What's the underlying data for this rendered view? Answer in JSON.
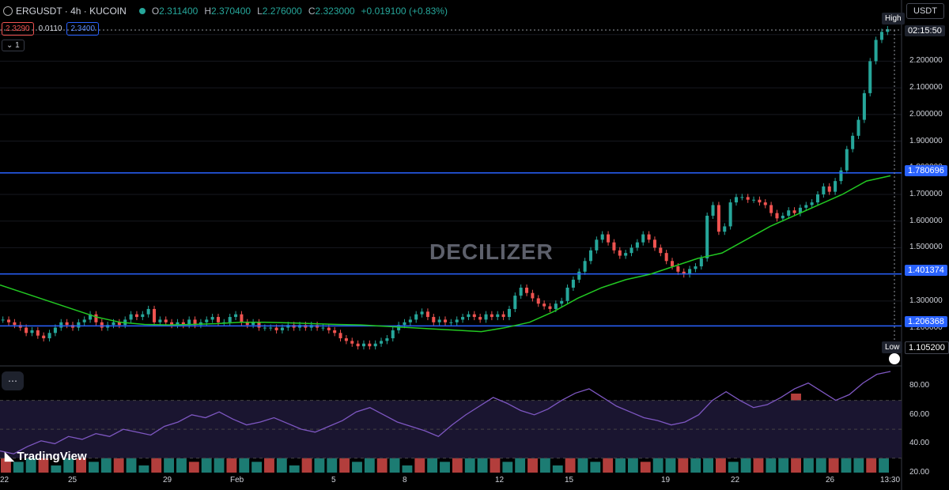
{
  "header": {
    "symbol": "ERGUSDT · 4h · KUCOIN",
    "open_key": "O",
    "open": "2.311400",
    "high_key": "H",
    "high": "2.370400",
    "low_key": "L",
    "low": "2.276000",
    "close_key": "C",
    "close": "2.323000",
    "change": "+0.019100 (+0.83%)"
  },
  "trade": {
    "sell": "2.3290",
    "spread": "0.0110",
    "buy": "2.3400",
    "qty": "1"
  },
  "currency": "USDT",
  "watermark": "DECILIZER",
  "branding": "TradingView",
  "indicator_button": "⋯",
  "colors": {
    "up": "#26a69a",
    "down": "#ef5350",
    "ma": "#22c822",
    "rsi": "#7e57c2",
    "hline": "#2962ff"
  },
  "price_axis": {
    "ticks": [
      "2.300000",
      "2.200000",
      "2.100000",
      "2.000000",
      "1.900000",
      "1.800000",
      "1.700000",
      "1.600000",
      "1.500000",
      "1.400000",
      "1.300000",
      "1.200000"
    ],
    "labels": [
      "1.780696",
      "1.401374",
      "1.206368"
    ],
    "low_value": "1.105200",
    "countdown": "02:15:50",
    "high_tag": "High",
    "low_tag": "Low"
  },
  "rsi_axis": {
    "ticks": [
      "80.00",
      "60.00",
      "40.00",
      "20.00"
    ]
  },
  "time_axis": {
    "ticks": [
      "22",
      "25",
      "29",
      "Feb",
      "5",
      "8",
      "12",
      "15",
      "19",
      "22",
      "26",
      "13:30"
    ]
  },
  "chart_data": {
    "type": "candlestick",
    "ylim": [
      1.08,
      2.4
    ],
    "horizontal_lines": [
      1.780696,
      1.401374,
      1.206368
    ],
    "closes": [
      1.23,
      1.22,
      1.21,
      1.2,
      1.18,
      1.19,
      1.17,
      1.16,
      1.18,
      1.2,
      1.22,
      1.21,
      1.2,
      1.22,
      1.23,
      1.25,
      1.22,
      1.2,
      1.21,
      1.22,
      1.21,
      1.23,
      1.25,
      1.24,
      1.25,
      1.27,
      1.22,
      1.23,
      1.22,
      1.21,
      1.22,
      1.21,
      1.23,
      1.21,
      1.22,
      1.23,
      1.24,
      1.22,
      1.22,
      1.24,
      1.25,
      1.22,
      1.21,
      1.22,
      1.2,
      1.2,
      1.2,
      1.19,
      1.2,
      1.21,
      1.2,
      1.21,
      1.2,
      1.21,
      1.2,
      1.2,
      1.19,
      1.18,
      1.16,
      1.15,
      1.14,
      1.13,
      1.14,
      1.13,
      1.14,
      1.15,
      1.16,
      1.19,
      1.21,
      1.22,
      1.23,
      1.25,
      1.26,
      1.24,
      1.22,
      1.23,
      1.22,
      1.22,
      1.23,
      1.24,
      1.25,
      1.24,
      1.23,
      1.25,
      1.24,
      1.25,
      1.24,
      1.27,
      1.32,
      1.35,
      1.33,
      1.31,
      1.29,
      1.28,
      1.27,
      1.29,
      1.3,
      1.35,
      1.38,
      1.41,
      1.45,
      1.49,
      1.53,
      1.55,
      1.52,
      1.49,
      1.47,
      1.48,
      1.5,
      1.52,
      1.55,
      1.53,
      1.5,
      1.48,
      1.45,
      1.43,
      1.41,
      1.4,
      1.42,
      1.43,
      1.46,
      1.62,
      1.66,
      1.56,
      1.58,
      1.67,
      1.69,
      1.69,
      1.68,
      1.68,
      1.67,
      1.66,
      1.63,
      1.61,
      1.62,
      1.64,
      1.63,
      1.65,
      1.66,
      1.67,
      1.7,
      1.73,
      1.71,
      1.75,
      1.79,
      1.87,
      1.92,
      1.98,
      2.08,
      2.2,
      2.28,
      2.31,
      2.32
    ],
    "ma": [
      1.36,
      1.33,
      1.3,
      1.27,
      1.24,
      1.22,
      1.212,
      1.21,
      1.212,
      1.215,
      1.22,
      1.22,
      1.218,
      1.215,
      1.212,
      1.21,
      1.205,
      1.2,
      1.195,
      1.19,
      1.185,
      1.2,
      1.22,
      1.26,
      1.31,
      1.35,
      1.38,
      1.4,
      1.43,
      1.46,
      1.48,
      1.53,
      1.58,
      1.62,
      1.66,
      1.7,
      1.75,
      1.77
    ],
    "rsi": [
      35,
      33,
      38,
      42,
      40,
      45,
      43,
      47,
      45,
      50,
      48,
      46,
      52,
      55,
      60,
      58,
      62,
      57,
      53,
      55,
      58,
      54,
      50,
      48,
      52,
      56,
      62,
      65,
      60,
      55,
      52,
      49,
      45,
      53,
      60,
      66,
      72,
      68,
      63,
      60,
      64,
      70,
      75,
      78,
      72,
      66,
      62,
      58,
      56,
      53,
      55,
      60,
      70,
      76,
      70,
      65,
      67,
      72,
      78,
      82,
      76,
      70,
      74,
      82,
      88,
      90
    ],
    "volume": [
      5,
      3,
      6,
      4,
      2,
      7,
      5,
      3,
      8,
      4,
      6,
      2,
      5,
      9,
      4,
      3,
      6,
      5,
      4,
      7,
      3,
      8,
      5,
      2,
      6,
      4,
      9,
      5,
      3,
      7,
      4,
      6,
      2,
      5,
      8,
      3,
      6,
      4,
      7,
      5,
      3,
      10,
      4,
      6,
      2,
      7,
      5,
      3,
      8,
      4,
      6,
      3,
      9,
      5,
      7,
      4,
      12,
      6,
      3,
      8,
      5,
      4,
      14,
      22,
      9,
      11,
      8,
      6,
      5,
      7,
      4
    ]
  }
}
